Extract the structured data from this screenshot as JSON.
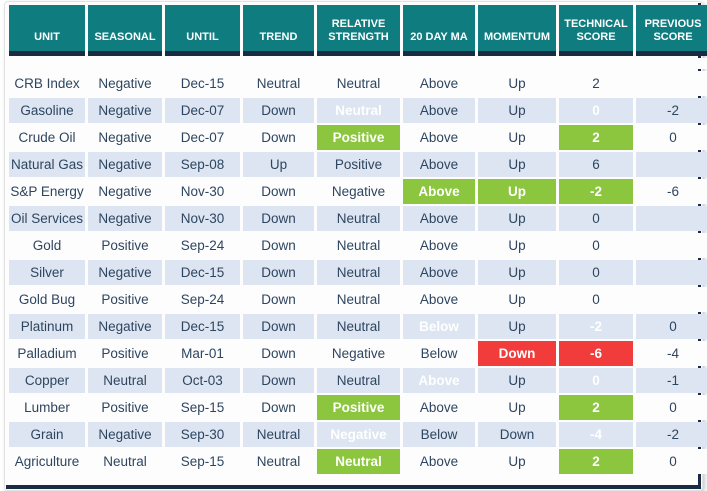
{
  "table_title": "commodity-technical-score-table",
  "colors": {
    "header_teal": "#0f7c7f",
    "divider_navy": "#1a2b44",
    "row_stripe_blue": "#dce5f1",
    "text_ink": "#2e4560",
    "positive_green": "#8cc63e",
    "negative_red": "#f23b3b"
  },
  "header": {
    "columns": [
      "UNIT",
      "SEASONAL",
      "UNTIL",
      "TREND",
      "RELATIVE STRENGTH",
      "20 DAY MA",
      "MOMENTUM",
      "TECHNICAL SCORE",
      "PREVIOUS SCORE"
    ]
  },
  "rows": [
    {
      "cells": [
        {
          "t": "CRB Index"
        },
        {
          "t": "Negative"
        },
        {
          "t": "Dec-15"
        },
        {
          "t": "Neutral"
        },
        {
          "t": "Neutral"
        },
        {
          "t": "Above"
        },
        {
          "t": "Up"
        },
        {
          "t": "2"
        },
        {
          "t": ""
        }
      ]
    },
    {
      "cells": [
        {
          "t": "Gasoline"
        },
        {
          "t": "Negative"
        },
        {
          "t": "Dec-07"
        },
        {
          "t": "Down"
        },
        {
          "t": "Neutral",
          "hl": "green"
        },
        {
          "t": "Above"
        },
        {
          "t": "Up"
        },
        {
          "t": "0",
          "hl": "green"
        },
        {
          "t": "-2"
        }
      ]
    },
    {
      "cells": [
        {
          "t": "Crude Oil"
        },
        {
          "t": "Negative"
        },
        {
          "t": "Dec-07"
        },
        {
          "t": "Down"
        },
        {
          "t": "Positive",
          "hl": "green"
        },
        {
          "t": "Above"
        },
        {
          "t": "Up"
        },
        {
          "t": "2",
          "hl": "green"
        },
        {
          "t": "0"
        }
      ]
    },
    {
      "cells": [
        {
          "t": "Natural Gas"
        },
        {
          "t": "Negative"
        },
        {
          "t": "Sep-08"
        },
        {
          "t": "Up"
        },
        {
          "t": "Positive"
        },
        {
          "t": "Above"
        },
        {
          "t": "Up"
        },
        {
          "t": "6"
        },
        {
          "t": ""
        }
      ]
    },
    {
      "cells": [
        {
          "t": "S&P Energy"
        },
        {
          "t": "Negative"
        },
        {
          "t": "Nov-30"
        },
        {
          "t": "Down"
        },
        {
          "t": "Negative"
        },
        {
          "t": "Above",
          "hl": "green"
        },
        {
          "t": "Up",
          "hl": "green"
        },
        {
          "t": "-2",
          "hl": "green"
        },
        {
          "t": "-6"
        }
      ]
    },
    {
      "cells": [
        {
          "t": "Oil Services"
        },
        {
          "t": "Negative"
        },
        {
          "t": "Nov-30"
        },
        {
          "t": "Down"
        },
        {
          "t": "Neutral"
        },
        {
          "t": "Above"
        },
        {
          "t": "Up"
        },
        {
          "t": "0"
        },
        {
          "t": ""
        }
      ]
    },
    {
      "cells": [
        {
          "t": "Gold"
        },
        {
          "t": "Positive"
        },
        {
          "t": "Sep-24"
        },
        {
          "t": "Down"
        },
        {
          "t": "Neutral"
        },
        {
          "t": "Above"
        },
        {
          "t": "Up"
        },
        {
          "t": "0"
        },
        {
          "t": ""
        }
      ]
    },
    {
      "cells": [
        {
          "t": "Silver"
        },
        {
          "t": "Negative"
        },
        {
          "t": "Dec-15"
        },
        {
          "t": "Down"
        },
        {
          "t": "Neutral"
        },
        {
          "t": "Above"
        },
        {
          "t": "Up"
        },
        {
          "t": "0"
        },
        {
          "t": ""
        }
      ]
    },
    {
      "cells": [
        {
          "t": "Gold Bug"
        },
        {
          "t": "Positive"
        },
        {
          "t": "Sep-24"
        },
        {
          "t": "Down"
        },
        {
          "t": "Neutral"
        },
        {
          "t": "Above"
        },
        {
          "t": "Up"
        },
        {
          "t": "0"
        },
        {
          "t": ""
        }
      ]
    },
    {
      "cells": [
        {
          "t": "Platinum"
        },
        {
          "t": "Negative"
        },
        {
          "t": "Dec-15"
        },
        {
          "t": "Down"
        },
        {
          "t": "Neutral"
        },
        {
          "t": "Below",
          "hl": "red"
        },
        {
          "t": "Up"
        },
        {
          "t": "-2",
          "hl": "red"
        },
        {
          "t": "0"
        }
      ]
    },
    {
      "cells": [
        {
          "t": "Palladium"
        },
        {
          "t": "Positive"
        },
        {
          "t": "Mar-01"
        },
        {
          "t": "Down"
        },
        {
          "t": "Negative"
        },
        {
          "t": "Below"
        },
        {
          "t": "Down",
          "hl": "red"
        },
        {
          "t": "-6",
          "hl": "red"
        },
        {
          "t": "-4"
        }
      ]
    },
    {
      "cells": [
        {
          "t": "Copper"
        },
        {
          "t": "Neutral"
        },
        {
          "t": "Oct-03"
        },
        {
          "t": "Down"
        },
        {
          "t": "Neutral"
        },
        {
          "t": "Above",
          "hl": "green"
        },
        {
          "t": "Up"
        },
        {
          "t": "0",
          "hl": "green"
        },
        {
          "t": "-1"
        }
      ]
    },
    {
      "cells": [
        {
          "t": "Lumber"
        },
        {
          "t": "Positive"
        },
        {
          "t": "Sep-15"
        },
        {
          "t": "Down"
        },
        {
          "t": "Positive",
          "hl": "green"
        },
        {
          "t": "Above"
        },
        {
          "t": "Up"
        },
        {
          "t": "2",
          "hl": "green"
        },
        {
          "t": "0"
        }
      ]
    },
    {
      "cells": [
        {
          "t": "Grain"
        },
        {
          "t": "Negative"
        },
        {
          "t": "Sep-30"
        },
        {
          "t": "Neutral"
        },
        {
          "t": "Negative",
          "hl": "red"
        },
        {
          "t": "Below"
        },
        {
          "t": "Down"
        },
        {
          "t": "-4",
          "hl": "red"
        },
        {
          "t": "-2"
        }
      ]
    },
    {
      "cells": [
        {
          "t": "Agriculture"
        },
        {
          "t": "Neutral"
        },
        {
          "t": "Sep-15"
        },
        {
          "t": "Neutral"
        },
        {
          "t": "Neutral",
          "hl": "green"
        },
        {
          "t": "Above"
        },
        {
          "t": "Up"
        },
        {
          "t": "2",
          "hl": "green"
        },
        {
          "t": "0"
        }
      ]
    }
  ]
}
